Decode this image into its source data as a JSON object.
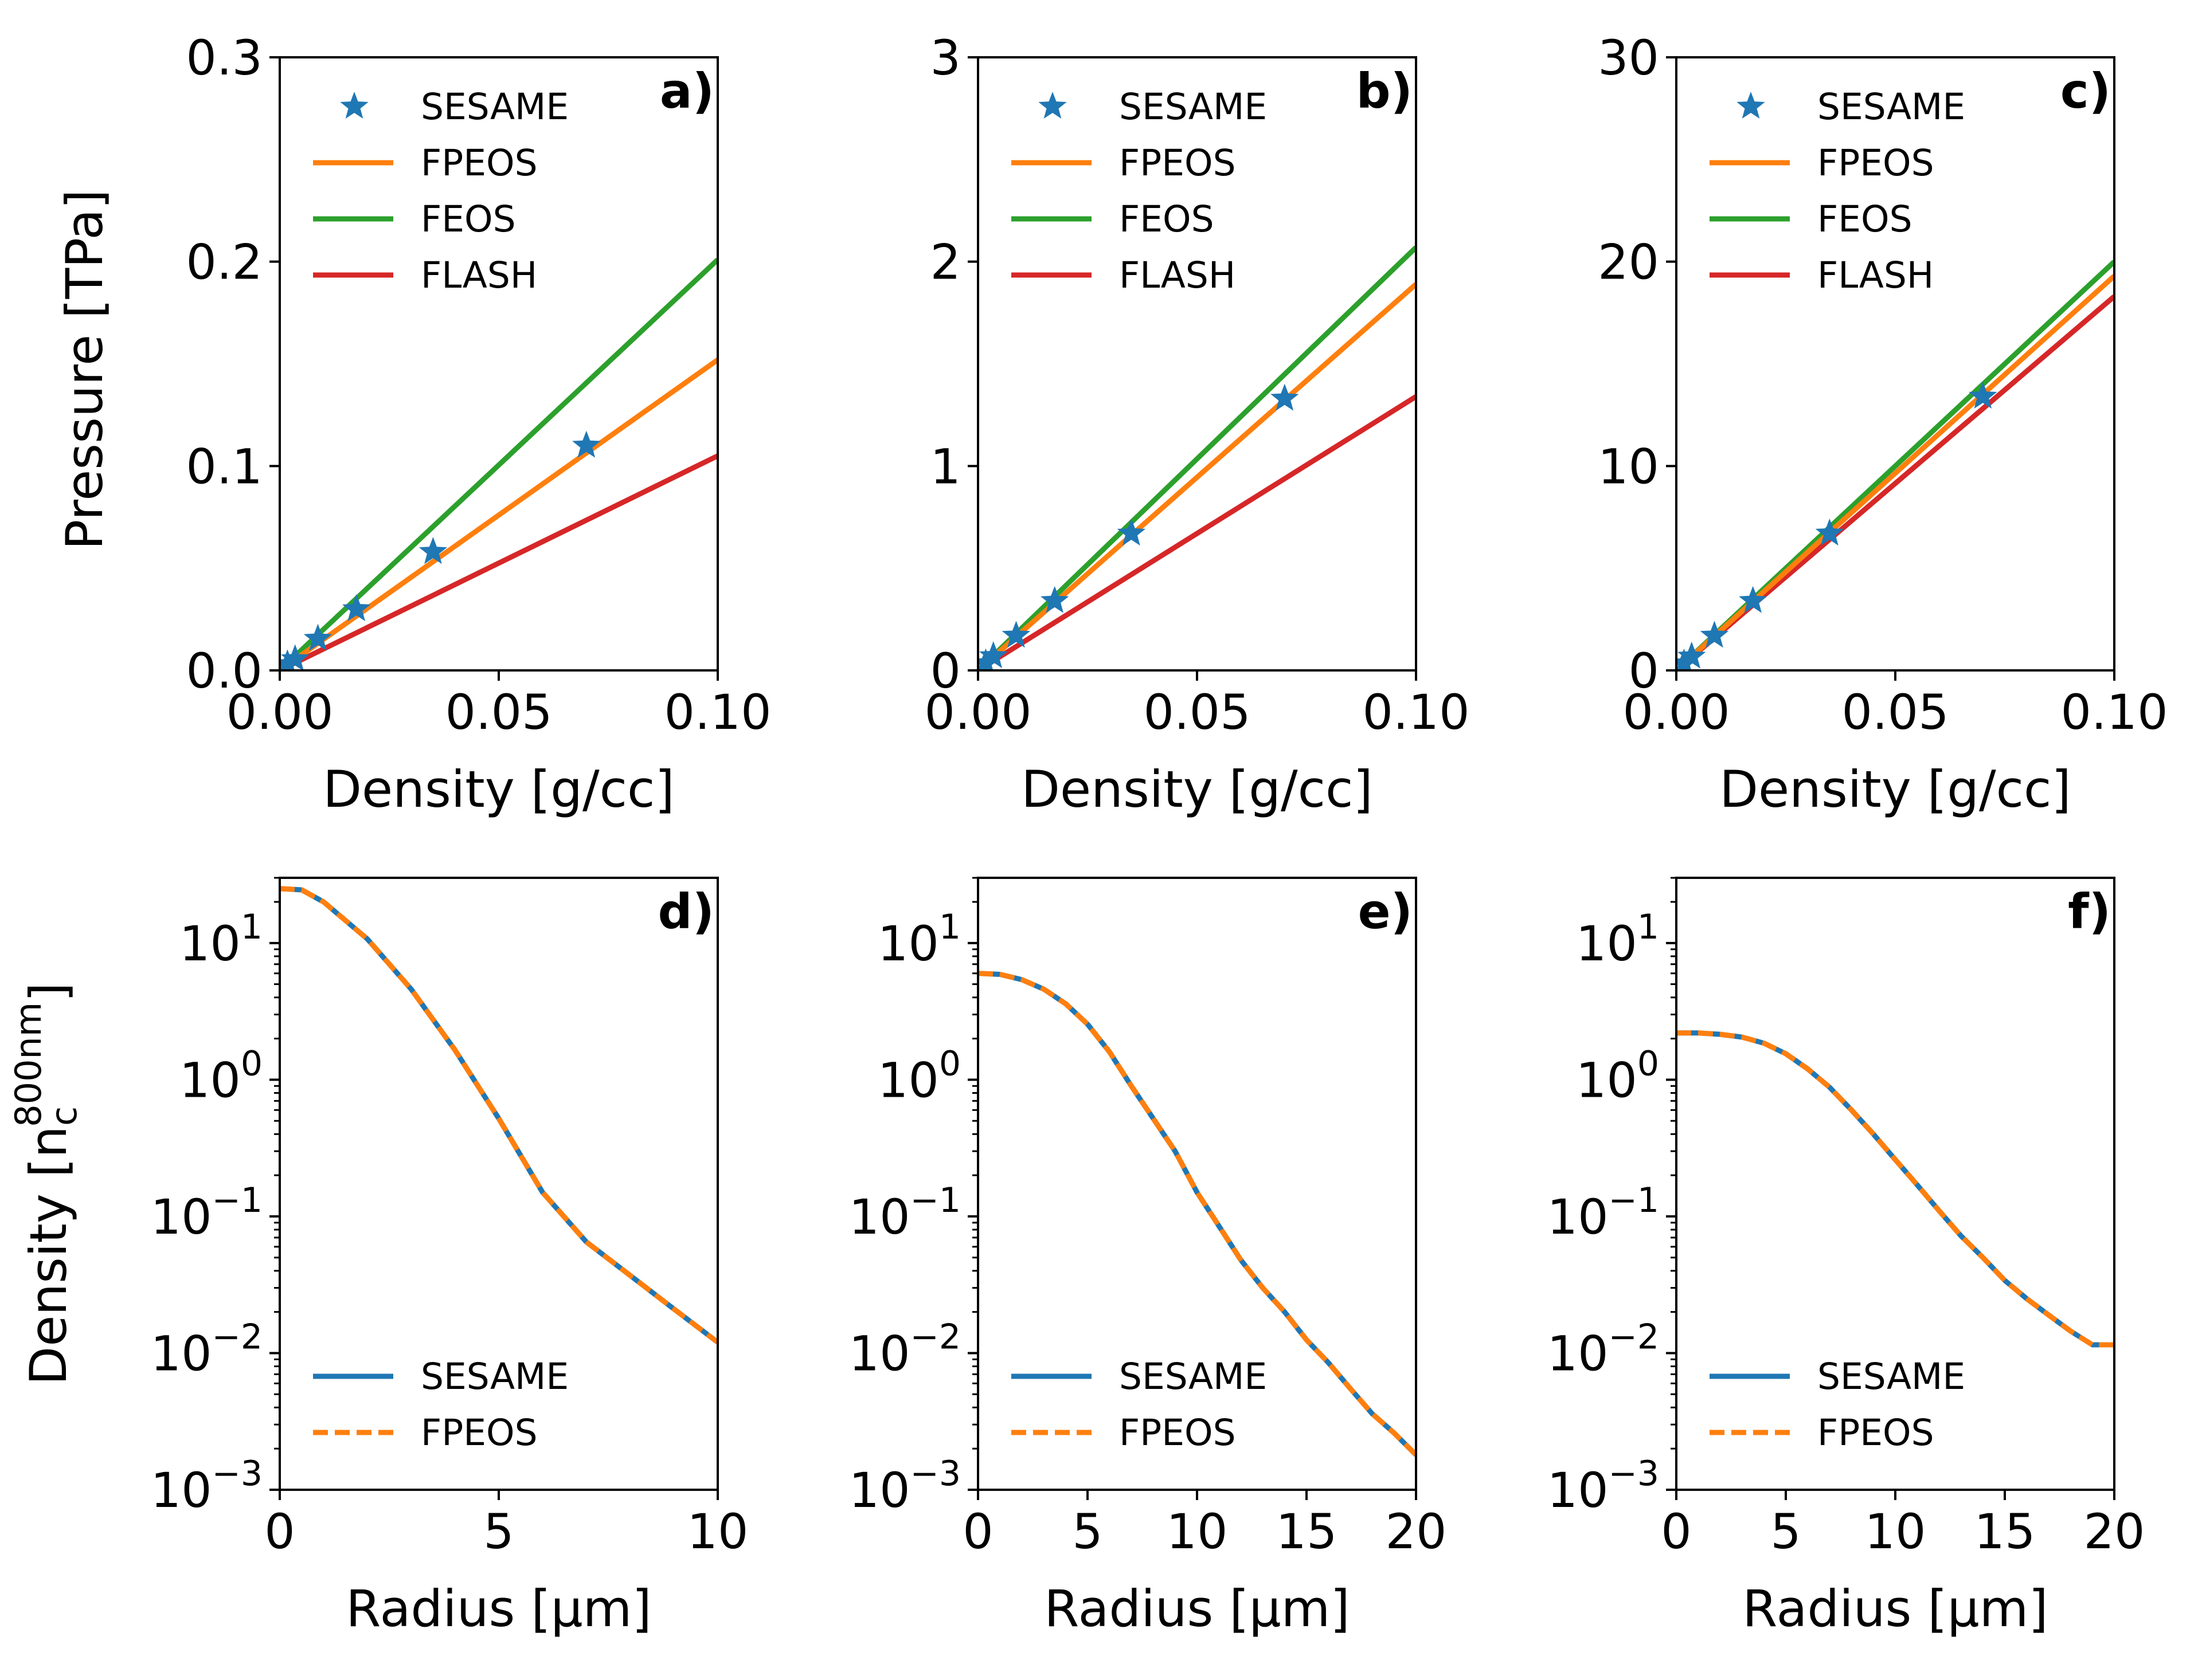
{
  "colors": {
    "SESAME": "#1f77b4",
    "FPEOS": "#ff7f0e",
    "FEOS": "#2ca02c",
    "FLASH": "#d62728"
  },
  "chart_data": [
    {
      "id": "a",
      "panel_label": "a)",
      "type": "line+scatter",
      "xlabel": "Density [g/cc]",
      "ylabel": "Pressure [TPa]",
      "xlim": [
        0,
        0.1
      ],
      "ylim": [
        0,
        0.3
      ],
      "xticks": [
        "0.00",
        "0.05",
        "0.10"
      ],
      "xtick_values": [
        0,
        0.05,
        0.1
      ],
      "yticks": [
        "0.0",
        "0.1",
        "0.2",
        "0.3"
      ],
      "ytick_values": [
        0,
        0.1,
        0.2,
        0.3
      ],
      "legend": [
        "SESAME",
        "FPEOS",
        "FEOS",
        "FLASH"
      ],
      "legend_position": "top-left",
      "series": [
        {
          "name": "SESAME",
          "style": "star",
          "x": [
            0.00175,
            0.0035,
            0.0087,
            0.0175,
            0.035,
            0.07
          ],
          "y": [
            0.003,
            0.0055,
            0.0155,
            0.03,
            0.058,
            0.11
          ]
        },
        {
          "name": "FPEOS",
          "style": "solid",
          "x": [
            0,
            0.1
          ],
          "y": [
            0,
            0.152
          ]
        },
        {
          "name": "FEOS",
          "style": "solid",
          "x": [
            0,
            0.1
          ],
          "y": [
            0,
            0.201
          ]
        },
        {
          "name": "FLASH",
          "style": "solid",
          "x": [
            0,
            0.1
          ],
          "y": [
            0,
            0.105
          ]
        }
      ]
    },
    {
      "id": "b",
      "panel_label": "b)",
      "type": "line+scatter",
      "xlabel": "Density [g/cc]",
      "ylabel": "",
      "xlim": [
        0,
        0.1
      ],
      "ylim": [
        0,
        3
      ],
      "xticks": [
        "0.00",
        "0.05",
        "0.10"
      ],
      "xtick_values": [
        0,
        0.05,
        0.1
      ],
      "yticks": [
        "0",
        "1",
        "2",
        "3"
      ],
      "ytick_values": [
        0,
        1,
        2,
        3
      ],
      "legend": [
        "SESAME",
        "FPEOS",
        "FEOS",
        "FLASH"
      ],
      "legend_position": "top-left",
      "series": [
        {
          "name": "SESAME",
          "style": "star",
          "x": [
            0.00175,
            0.0035,
            0.0087,
            0.0175,
            0.035,
            0.07
          ],
          "y": [
            0.035,
            0.07,
            0.17,
            0.34,
            0.67,
            1.33
          ]
        },
        {
          "name": "FPEOS",
          "style": "solid",
          "x": [
            0,
            0.1
          ],
          "y": [
            0,
            1.89
          ]
        },
        {
          "name": "FEOS",
          "style": "solid",
          "x": [
            0,
            0.1
          ],
          "y": [
            0,
            2.07
          ]
        },
        {
          "name": "FLASH",
          "style": "solid",
          "x": [
            0,
            0.1
          ],
          "y": [
            0,
            1.34
          ]
        }
      ]
    },
    {
      "id": "c",
      "panel_label": "c)",
      "type": "line+scatter",
      "xlabel": "Density [g/cc]",
      "ylabel": "",
      "xlim": [
        0,
        0.1
      ],
      "ylim": [
        0,
        30
      ],
      "xticks": [
        "0.00",
        "0.05",
        "0.10"
      ],
      "xtick_values": [
        0,
        0.05,
        0.1
      ],
      "yticks": [
        "0",
        "10",
        "20",
        "30"
      ],
      "ytick_values": [
        0,
        10,
        20,
        30
      ],
      "legend": [
        "SESAME",
        "FPEOS",
        "FEOS",
        "FLASH"
      ],
      "legend_position": "top-left",
      "series": [
        {
          "name": "SESAME",
          "style": "star",
          "x": [
            0.00175,
            0.0035,
            0.0087,
            0.0175,
            0.035,
            0.07
          ],
          "y": [
            0.34,
            0.68,
            1.7,
            3.4,
            6.7,
            13.4
          ]
        },
        {
          "name": "FPEOS",
          "style": "solid",
          "x": [
            0,
            0.1
          ],
          "y": [
            0,
            19.3
          ]
        },
        {
          "name": "FEOS",
          "style": "solid",
          "x": [
            0,
            0.1
          ],
          "y": [
            0,
            20.0
          ]
        },
        {
          "name": "FLASH",
          "style": "solid",
          "x": [
            0,
            0.1
          ],
          "y": [
            0,
            18.3
          ]
        }
      ]
    },
    {
      "id": "d",
      "panel_label": "d)",
      "type": "line",
      "yscale": "log",
      "xlabel": "Radius [µm]",
      "ylabel": "Density [n_c^800nm]",
      "ylabel_parts": {
        "main": "Density [n",
        "sub": "c",
        "sup": "800nm",
        "close": "]"
      },
      "xlim": [
        0,
        10
      ],
      "ylim": [
        0.001,
        30
      ],
      "xticks": [
        "0",
        "5",
        "10"
      ],
      "xtick_values": [
        0,
        5,
        10
      ],
      "yticks": [
        {
          "base": "10",
          "exp": "1",
          "value": 10
        },
        {
          "base": "10",
          "exp": "0",
          "value": 1
        },
        {
          "base": "10",
          "exp": "−1",
          "value": 0.1
        },
        {
          "base": "10",
          "exp": "−2",
          "value": 0.01
        },
        {
          "base": "10",
          "exp": "−3",
          "value": 0.001
        }
      ],
      "legend": [
        "SESAME",
        "FPEOS"
      ],
      "legend_position": "bottom-left",
      "series": [
        {
          "name": "SESAME",
          "style": "solid",
          "x": [
            0,
            0.5,
            1,
            2,
            3,
            4,
            5,
            6,
            7,
            8,
            9,
            10
          ],
          "y": [
            25,
            24.5,
            20,
            10.7,
            4.6,
            1.65,
            0.52,
            0.15,
            0.065,
            0.037,
            0.021,
            0.012
          ]
        },
        {
          "name": "FPEOS",
          "style": "dashed",
          "x": [
            0,
            0.5,
            1,
            2,
            3,
            4,
            5,
            6,
            7,
            8,
            9,
            10
          ],
          "y": [
            25,
            24.5,
            20,
            10.7,
            4.6,
            1.65,
            0.52,
            0.15,
            0.065,
            0.037,
            0.021,
            0.012
          ]
        }
      ]
    },
    {
      "id": "e",
      "panel_label": "e)",
      "type": "line",
      "yscale": "log",
      "xlabel": "Radius [µm]",
      "ylabel": "",
      "xlim": [
        0,
        20
      ],
      "ylim": [
        0.001,
        30
      ],
      "xticks": [
        "0",
        "5",
        "10",
        "15",
        "20"
      ],
      "xtick_values": [
        0,
        5,
        10,
        15,
        20
      ],
      "yticks": [
        {
          "base": "10",
          "exp": "1",
          "value": 10
        },
        {
          "base": "10",
          "exp": "0",
          "value": 1
        },
        {
          "base": "10",
          "exp": "−1",
          "value": 0.1
        },
        {
          "base": "10",
          "exp": "−2",
          "value": 0.01
        },
        {
          "base": "10",
          "exp": "−3",
          "value": 0.001
        }
      ],
      "legend": [
        "SESAME",
        "FPEOS"
      ],
      "legend_position": "bottom-left",
      "series": [
        {
          "name": "SESAME",
          "style": "solid",
          "x": [
            0,
            1,
            2,
            3,
            4,
            5,
            6,
            7,
            8,
            9,
            10,
            11,
            12,
            13,
            14,
            15,
            16,
            17,
            18,
            19,
            20
          ],
          "y": [
            6,
            5.9,
            5.4,
            4.6,
            3.6,
            2.55,
            1.6,
            0.9,
            0.52,
            0.3,
            0.15,
            0.085,
            0.048,
            0.03,
            0.02,
            0.0125,
            0.0085,
            0.0055,
            0.0036,
            0.0026,
            0.0018
          ]
        },
        {
          "name": "FPEOS",
          "style": "dashed",
          "x": [
            0,
            1,
            2,
            3,
            4,
            5,
            6,
            7,
            8,
            9,
            10,
            11,
            12,
            13,
            14,
            15,
            16,
            17,
            18,
            19,
            20
          ],
          "y": [
            6,
            5.9,
            5.4,
            4.6,
            3.6,
            2.55,
            1.6,
            0.9,
            0.52,
            0.3,
            0.15,
            0.085,
            0.048,
            0.03,
            0.02,
            0.0125,
            0.0085,
            0.0055,
            0.0036,
            0.0026,
            0.0018
          ]
        }
      ]
    },
    {
      "id": "f",
      "panel_label": "f)",
      "type": "line",
      "yscale": "log",
      "xlabel": "Radius [µm]",
      "ylabel": "",
      "xlim": [
        0,
        20
      ],
      "ylim": [
        0.001,
        30
      ],
      "xticks": [
        "0",
        "5",
        "10",
        "15",
        "20"
      ],
      "xtick_values": [
        0,
        5,
        10,
        15,
        20
      ],
      "yticks": [
        {
          "base": "10",
          "exp": "1",
          "value": 10
        },
        {
          "base": "10",
          "exp": "0",
          "value": 1
        },
        {
          "base": "10",
          "exp": "−1",
          "value": 0.1
        },
        {
          "base": "10",
          "exp": "−2",
          "value": 0.01
        },
        {
          "base": "10",
          "exp": "−3",
          "value": 0.001
        }
      ],
      "legend": [
        "SESAME",
        "FPEOS"
      ],
      "legend_position": "bottom-left",
      "series": [
        {
          "name": "SESAME",
          "style": "solid",
          "x": [
            0,
            1,
            2,
            3,
            4,
            5,
            6,
            7,
            8,
            9,
            10,
            11,
            12,
            13,
            14,
            15,
            16,
            17,
            18,
            19,
            20
          ],
          "y": [
            2.2,
            2.2,
            2.15,
            2.05,
            1.85,
            1.55,
            1.2,
            0.88,
            0.6,
            0.4,
            0.26,
            0.17,
            0.11,
            0.072,
            0.05,
            0.034,
            0.025,
            0.019,
            0.0145,
            0.0115,
            0.0115
          ]
        },
        {
          "name": "FPEOS",
          "style": "dashed",
          "x": [
            0,
            1,
            2,
            3,
            4,
            5,
            6,
            7,
            8,
            9,
            10,
            11,
            12,
            13,
            14,
            15,
            16,
            17,
            18,
            19,
            20
          ],
          "y": [
            2.2,
            2.2,
            2.15,
            2.05,
            1.85,
            1.55,
            1.2,
            0.88,
            0.6,
            0.4,
            0.26,
            0.17,
            0.11,
            0.072,
            0.05,
            0.034,
            0.025,
            0.019,
            0.0145,
            0.0115,
            0.0115
          ]
        }
      ]
    }
  ]
}
